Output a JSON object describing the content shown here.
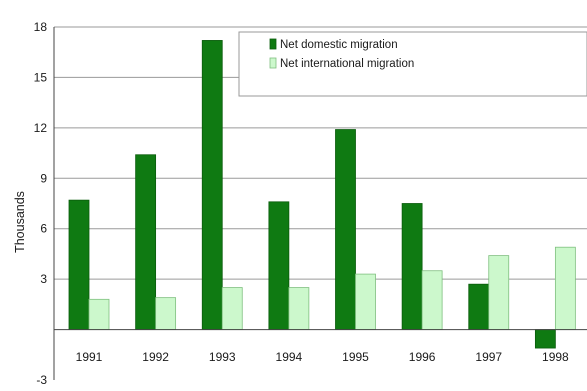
{
  "chart_data": {
    "type": "bar",
    "categories": [
      "1991",
      "1992",
      "1993",
      "1994",
      "1995",
      "1996",
      "1997",
      "1998"
    ],
    "series": [
      {
        "name": "Net domestic migration",
        "color": "#0f7a12",
        "values": [
          7.7,
          10.4,
          17.2,
          7.6,
          11.9,
          7.5,
          2.7,
          -1.1
        ]
      },
      {
        "name": "Net international migration",
        "color": "#ccf8cc",
        "values": [
          1.8,
          1.9,
          2.5,
          2.5,
          3.3,
          3.5,
          4.4,
          4.9
        ]
      }
    ],
    "ylabel": "Thousands",
    "xlabel": "",
    "ylim": [
      -3,
      18
    ],
    "yticks": [
      -3,
      3,
      6,
      9,
      12,
      15,
      18
    ],
    "grid": true,
    "legend_position": "top-right"
  }
}
